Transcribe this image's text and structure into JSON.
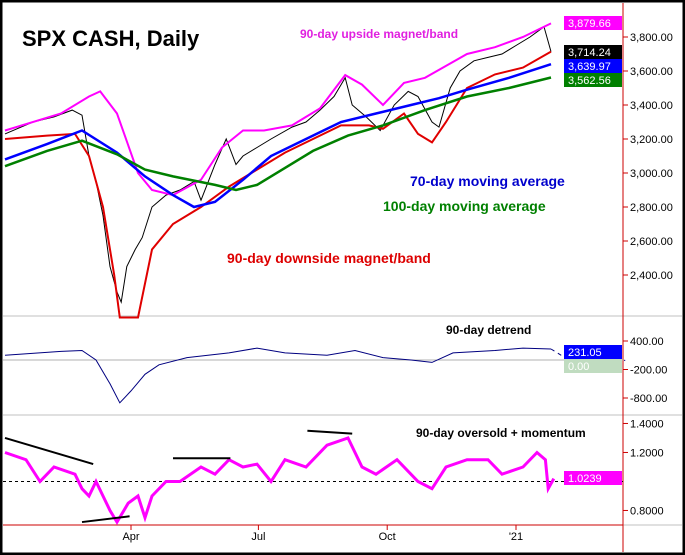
{
  "chart_data": [
    {
      "type": "line",
      "title": "SPX CASH, Daily",
      "ylim": [
        2150,
        3950
      ],
      "xticks": [
        {
          "day": 90,
          "label": "Apr"
        },
        {
          "day": 181,
          "label": "Jul"
        },
        {
          "day": 273,
          "label": "Oct"
        },
        {
          "day": 365,
          "label": "'21"
        }
      ],
      "yticks": [
        2400,
        2600,
        2800,
        3000,
        3200,
        3400,
        3600,
        3800
      ],
      "ytick_labels": [
        "2,400.00",
        "2,600.00",
        "2,800.00",
        "3,000.00",
        "3,200.00",
        "3,400.00",
        "3,600.00",
        "3,800.00"
      ],
      "annotations": [
        "90-day upside magnet/band",
        "70-day moving average",
        "100-day moving average",
        "90-day downside magnet/band"
      ],
      "last_values": [
        {
          "label": "3,879.66",
          "color": "#ff00ff"
        },
        {
          "label": "3,714.24",
          "color": "#000000"
        },
        {
          "label": "3,639.97",
          "color": "#0000ff"
        },
        {
          "label": "3,562.56",
          "color": "#008000"
        }
      ],
      "series": [
        {
          "name": "SPX price",
          "color": "#000000",
          "points": [
            [
              0,
              3230
            ],
            [
              20,
              3300
            ],
            [
              35,
              3330
            ],
            [
              48,
              3370
            ],
            [
              55,
              3340
            ],
            [
              60,
              3100
            ],
            [
              65,
              2950
            ],
            [
              70,
              2750
            ],
            [
              75,
              2450
            ],
            [
              80,
              2300
            ],
            [
              83,
              2240
            ],
            [
              87,
              2450
            ],
            [
              93,
              2550
            ],
            [
              98,
              2620
            ],
            [
              105,
              2800
            ],
            [
              115,
              2870
            ],
            [
              125,
              2900
            ],
            [
              135,
              2950
            ],
            [
              140,
              2840
            ],
            [
              150,
              3050
            ],
            [
              158,
              3200
            ],
            [
              165,
              3050
            ],
            [
              170,
              3100
            ],
            [
              180,
              3150
            ],
            [
              190,
              3200
            ],
            [
              205,
              3270
            ],
            [
              215,
              3300
            ],
            [
              225,
              3370
            ],
            [
              235,
              3450
            ],
            [
              243,
              3560
            ],
            [
              248,
              3400
            ],
            [
              258,
              3330
            ],
            [
              268,
              3250
            ],
            [
              278,
              3400
            ],
            [
              288,
              3480
            ],
            [
              295,
              3450
            ],
            [
              305,
              3300
            ],
            [
              310,
              3270
            ],
            [
              318,
              3500
            ],
            [
              325,
              3600
            ],
            [
              335,
              3660
            ],
            [
              345,
              3680
            ],
            [
              355,
              3700
            ],
            [
              365,
              3750
            ],
            [
              375,
              3800
            ],
            [
              385,
              3860
            ],
            [
              390,
              3714
            ]
          ]
        },
        {
          "name": "90-day upside magnet/band",
          "color": "#ff00ff",
          "points": [
            [
              0,
              3250
            ],
            [
              40,
              3350
            ],
            [
              60,
              3450
            ],
            [
              68,
              3480
            ],
            [
              80,
              3350
            ],
            [
              95,
              3000
            ],
            [
              105,
              2900
            ],
            [
              120,
              2870
            ],
            [
              140,
              2960
            ],
            [
              155,
              3150
            ],
            [
              170,
              3250
            ],
            [
              185,
              3250
            ],
            [
              205,
              3280
            ],
            [
              225,
              3380
            ],
            [
              243,
              3576
            ],
            [
              255,
              3520
            ],
            [
              270,
              3400
            ],
            [
              285,
              3530
            ],
            [
              300,
              3560
            ],
            [
              315,
              3630
            ],
            [
              330,
              3700
            ],
            [
              350,
              3740
            ],
            [
              370,
              3800
            ],
            [
              390,
              3880
            ]
          ]
        },
        {
          "name": "90-day downside magnet/band",
          "color": "#e00000",
          "points": [
            [
              0,
              3200
            ],
            [
              30,
              3220
            ],
            [
              50,
              3230
            ],
            [
              60,
              3100
            ],
            [
              70,
              2800
            ],
            [
              78,
              2400
            ],
            [
              82,
              2150
            ],
            [
              95,
              2150
            ],
            [
              105,
              2550
            ],
            [
              120,
              2700
            ],
            [
              140,
              2800
            ],
            [
              160,
              2920
            ],
            [
              180,
              3020
            ],
            [
              200,
              3120
            ],
            [
              220,
              3200
            ],
            [
              240,
              3280
            ],
            [
              260,
              3280
            ],
            [
              270,
              3260
            ],
            [
              285,
              3350
            ],
            [
              295,
              3230
            ],
            [
              305,
              3180
            ],
            [
              315,
              3300
            ],
            [
              330,
              3500
            ],
            [
              350,
              3580
            ],
            [
              370,
              3620
            ],
            [
              390,
              3714
            ]
          ]
        },
        {
          "name": "70-day moving average",
          "color": "#0000ff",
          "points": [
            [
              0,
              3080
            ],
            [
              30,
              3170
            ],
            [
              55,
              3250
            ],
            [
              80,
              3120
            ],
            [
              100,
              2980
            ],
            [
              120,
              2870
            ],
            [
              135,
              2800
            ],
            [
              150,
              2830
            ],
            [
              170,
              2960
            ],
            [
              190,
              3100
            ],
            [
              215,
              3200
            ],
            [
              240,
              3300
            ],
            [
              265,
              3350
            ],
            [
              290,
              3400
            ],
            [
              310,
              3440
            ],
            [
              330,
              3490
            ],
            [
              360,
              3560
            ],
            [
              390,
              3640
            ]
          ]
        },
        {
          "name": "100-day moving average",
          "color": "#008000",
          "points": [
            [
              0,
              3040
            ],
            [
              30,
              3130
            ],
            [
              55,
              3190
            ],
            [
              80,
              3110
            ],
            [
              100,
              3020
            ],
            [
              120,
              2980
            ],
            [
              150,
              2930
            ],
            [
              165,
              2900
            ],
            [
              180,
              2930
            ],
            [
              200,
              3030
            ],
            [
              220,
              3130
            ],
            [
              245,
              3220
            ],
            [
              270,
              3280
            ],
            [
              300,
              3370
            ],
            [
              330,
              3450
            ],
            [
              360,
              3500
            ],
            [
              390,
              3562
            ]
          ]
        }
      ]
    },
    {
      "type": "line",
      "title": "90-day detrend",
      "ylim": [
        -1000,
        650
      ],
      "yticks": [
        400,
        -200,
        -800
      ],
      "ytick_labels": [
        "400.00",
        "-200.00",
        "-800.00"
      ],
      "last_values": [
        {
          "label": "231.05",
          "color": "#0000ff"
        },
        {
          "label": "0.00",
          "color": "#c0dcc0"
        }
      ],
      "series": [
        {
          "name": "detrend",
          "color": "#000080",
          "points": [
            [
              0,
              100
            ],
            [
              40,
              180
            ],
            [
              55,
              200
            ],
            [
              65,
              0
            ],
            [
              75,
              -500
            ],
            [
              82,
              -900
            ],
            [
              90,
              -650
            ],
            [
              100,
              -300
            ],
            [
              110,
              -100
            ],
            [
              130,
              50
            ],
            [
              160,
              150
            ],
            [
              180,
              250
            ],
            [
              200,
              150
            ],
            [
              230,
              100
            ],
            [
              250,
              200
            ],
            [
              270,
              50
            ],
            [
              290,
              0
            ],
            [
              305,
              -50
            ],
            [
              320,
              150
            ],
            [
              350,
              200
            ],
            [
              370,
              250
            ],
            [
              390,
              231
            ]
          ]
        },
        {
          "name": "projection",
          "color": "#000080",
          "dashed": true,
          "points": [
            [
              390,
              231
            ],
            [
              400,
              50
            ],
            [
              412,
              -130
            ],
            [
              425,
              -200
            ],
            [
              435,
              -150
            ],
            [
              443,
              0
            ]
          ]
        }
      ]
    },
    {
      "type": "line",
      "title": "90-day oversold + momentum",
      "ylim": [
        0.68,
        1.47
      ],
      "yticks": [
        1.4,
        1.2,
        0.8
      ],
      "ytick_labels": [
        "1.4000",
        "1.2000",
        "0.8000"
      ],
      "reference": 1.0,
      "last_values": [
        {
          "label": "1.0239",
          "color": "#ff00ff"
        }
      ],
      "series": [
        {
          "name": "oscillator",
          "color": "#ff00ff",
          "points": [
            [
              0,
              1.2
            ],
            [
              15,
              1.15
            ],
            [
              25,
              1.0
            ],
            [
              35,
              1.1
            ],
            [
              50,
              1.05
            ],
            [
              55,
              0.95
            ],
            [
              60,
              0.9
            ],
            [
              65,
              1.0
            ],
            [
              70,
              0.9
            ],
            [
              75,
              0.8
            ],
            [
              80,
              0.72
            ],
            [
              88,
              0.85
            ],
            [
              95,
              0.9
            ],
            [
              100,
              0.75
            ],
            [
              105,
              0.9
            ],
            [
              115,
              1.0
            ],
            [
              125,
              1.0
            ],
            [
              140,
              1.1
            ],
            [
              150,
              1.05
            ],
            [
              160,
              1.15
            ],
            [
              170,
              1.1
            ],
            [
              180,
              1.12
            ],
            [
              190,
              1.0
            ],
            [
              200,
              1.15
            ],
            [
              215,
              1.1
            ],
            [
              230,
              1.25
            ],
            [
              245,
              1.3
            ],
            [
              255,
              1.1
            ],
            [
              265,
              1.05
            ],
            [
              280,
              1.15
            ],
            [
              295,
              1.0
            ],
            [
              305,
              0.95
            ],
            [
              315,
              1.1
            ],
            [
              330,
              1.15
            ],
            [
              345,
              1.15
            ],
            [
              355,
              1.05
            ],
            [
              370,
              1.1
            ],
            [
              380,
              1.2
            ],
            [
              386,
              1.15
            ],
            [
              388,
              0.95
            ],
            [
              392,
              1.02
            ]
          ]
        }
      ],
      "trendlines": [
        [
          [
            0,
            1.3
          ],
          [
            63,
            1.12
          ]
        ],
        [
          [
            55,
            0.72
          ],
          [
            89,
            0.76
          ]
        ],
        [
          [
            120,
            1.16
          ],
          [
            161,
            1.16
          ]
        ],
        [
          [
            216,
            1.35
          ],
          [
            248,
            1.33
          ]
        ]
      ]
    }
  ]
}
